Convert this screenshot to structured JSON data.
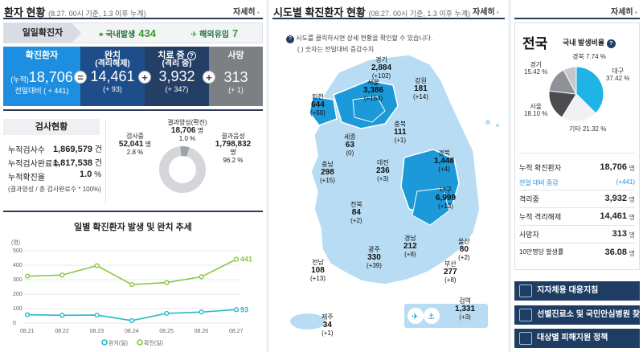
{
  "left": {
    "title": "환자 현황",
    "subtitle": "(8.27. 00시 기준, 1.3 이후 누계)",
    "more": "자세히",
    "daily": {
      "label": "일일확진자",
      "domestic_label": "국내발생",
      "domestic_value": "434",
      "overseas_label": "해외유입",
      "overseas_value": "7"
    },
    "confirmed": {
      "label": "확진환자",
      "prefix": "(누적)",
      "value": "18,706",
      "change_label": "전일대비",
      "change": "( + 441)"
    },
    "released": {
      "label": "완치",
      "sub": "(격리해제)",
      "value": "14,461",
      "change": "(+ 93)"
    },
    "treating": {
      "label": "치료 중",
      "sub": "(격리 중)",
      "value": "3,932",
      "change": "(+ 347)"
    },
    "deaths": {
      "label": "사망",
      "value": "313",
      "change": "(+ 1)"
    },
    "eq_sign": "=",
    "plus_sign": "+",
    "tests": {
      "title": "검사현황",
      "rows": [
        {
          "label": "누적검사수",
          "value": "1,869,579",
          "unit": "건"
        },
        {
          "label": "누적검사완료수",
          "value": "1,817,538",
          "unit": "건"
        },
        {
          "label": "누적확진율",
          "value": "1.0",
          "unit": "%"
        }
      ],
      "note": "(결과양성 / 총 검사완료수 * 100%)",
      "donut": {
        "in_progress_label": "검사중",
        "in_progress_value": "52,041",
        "in_progress_unit": "명",
        "in_progress_pct": "2.8 %",
        "positive_label": "결과양성(확진)",
        "positive_value": "18,706",
        "positive_unit": "명",
        "positive_pct": "1.0 %",
        "negative_label": "결과음성",
        "negative_value": "1,798,832",
        "negative_unit": "명",
        "negative_pct": "96.2 %"
      }
    }
  },
  "chart_data": {
    "type": "line",
    "title": "일별 확진환자 발생 및 완치 추세",
    "ylabel": "(명)",
    "x": [
      "08.21",
      "08.22",
      "08.23",
      "08.24",
      "08.25",
      "08.26",
      "08.27"
    ],
    "yticks": [
      "0",
      "100",
      "200",
      "300",
      "400",
      "500"
    ],
    "ylim": [
      0,
      500
    ],
    "series": [
      {
        "name": "완치(일)",
        "color": "#2ab7c9",
        "values": [
          58,
          54,
          55,
          17,
          67,
          76,
          93
        ]
      },
      {
        "name": "확진(일)",
        "color": "#8cc63f",
        "values": [
          324,
          332,
          397,
          266,
          280,
          320,
          441
        ]
      }
    ],
    "last_labels": [
      "93",
      "441"
    ]
  },
  "mid": {
    "title": "시도별 확진환자 현황",
    "subtitle": "(08.27. 00시 기준, 1.3 이후 누계)",
    "more": "자세히",
    "tip1": "시도를 클릭하시면 상세 현황을 확인할 수 있습니다.",
    "tip2": "( ) 숫자는 전일대비 증감수치",
    "regions": [
      {
        "name": "경기",
        "value": "2,884",
        "change": "(+102)"
      },
      {
        "name": "강원",
        "value": "181",
        "change": "(+14)"
      },
      {
        "name": "인천",
        "value": "644",
        "change": "(+59)"
      },
      {
        "name": "서울",
        "value": "3,386",
        "change": "(+154)"
      },
      {
        "name": "충북",
        "value": "111",
        "change": "(+1)"
      },
      {
        "name": "세종",
        "value": "63",
        "change": "(0)"
      },
      {
        "name": "대전",
        "value": "236",
        "change": "(+3)"
      },
      {
        "name": "경북",
        "value": "1,448",
        "change": "(+4)"
      },
      {
        "name": "충남",
        "value": "298",
        "change": "(+15)"
      },
      {
        "name": "대구",
        "value": "6,999",
        "change": "(+13)"
      },
      {
        "name": "전북",
        "value": "84",
        "change": "(+2)"
      },
      {
        "name": "울산",
        "value": "80",
        "change": "(+2)"
      },
      {
        "name": "경남",
        "value": "212",
        "change": "(+8)"
      },
      {
        "name": "광주",
        "value": "330",
        "change": "(+39)"
      },
      {
        "name": "부산",
        "value": "277",
        "change": "(+8)"
      },
      {
        "name": "전남",
        "value": "108",
        "change": "(+13)"
      },
      {
        "name": "검역",
        "value": "1,331",
        "change": "(+3)"
      },
      {
        "name": "제주",
        "value": "34",
        "change": "(+1)"
      }
    ]
  },
  "right": {
    "title": "전국",
    "ratio_title": "국내 발생비율",
    "pie": [
      {
        "name": "대구",
        "pct": "37.42 %",
        "value": 37.42,
        "color": "#1fb3e6"
      },
      {
        "name": "기타",
        "pct": "21.32 %",
        "value": 21.32,
        "color": "#f0f1f3"
      },
      {
        "name": "서울",
        "pct": "18.10 %",
        "value": 18.1,
        "color": "#4a4c50"
      },
      {
        "name": "경기",
        "pct": "15.42 %",
        "value": 15.42,
        "color": "#8e9196"
      },
      {
        "name": "경북",
        "pct": "7.74 %",
        "value": 7.74,
        "color": "#c5c7cb"
      }
    ],
    "stats": [
      {
        "label": "누적 확진환자",
        "value": "18,706",
        "unit": "명"
      },
      {
        "label": "전일 대비 증감",
        "value": "(+441)",
        "unit": ""
      },
      {
        "label": "격리중",
        "value": "3,932",
        "unit": "명"
      },
      {
        "label": "누적 격리해제",
        "value": "14,461",
        "unit": "명"
      },
      {
        "label": "사망자",
        "value": "313",
        "unit": "명"
      },
      {
        "label": "10만명당 발생률",
        "value": "36.08",
        "unit": "명"
      }
    ],
    "buttons": [
      "지자체용 대응지침",
      "선별진료소 및 국민안심병원 찾기",
      "대상별 피해지원 정책"
    ]
  },
  "colors": {
    "confirmed": "#1e8fe0",
    "released": "#1d4e89",
    "treating": "#243f66",
    "deaths": "#7c7f84",
    "map_dark": "#1b99d8",
    "map_light": "#b8dcf3"
  }
}
